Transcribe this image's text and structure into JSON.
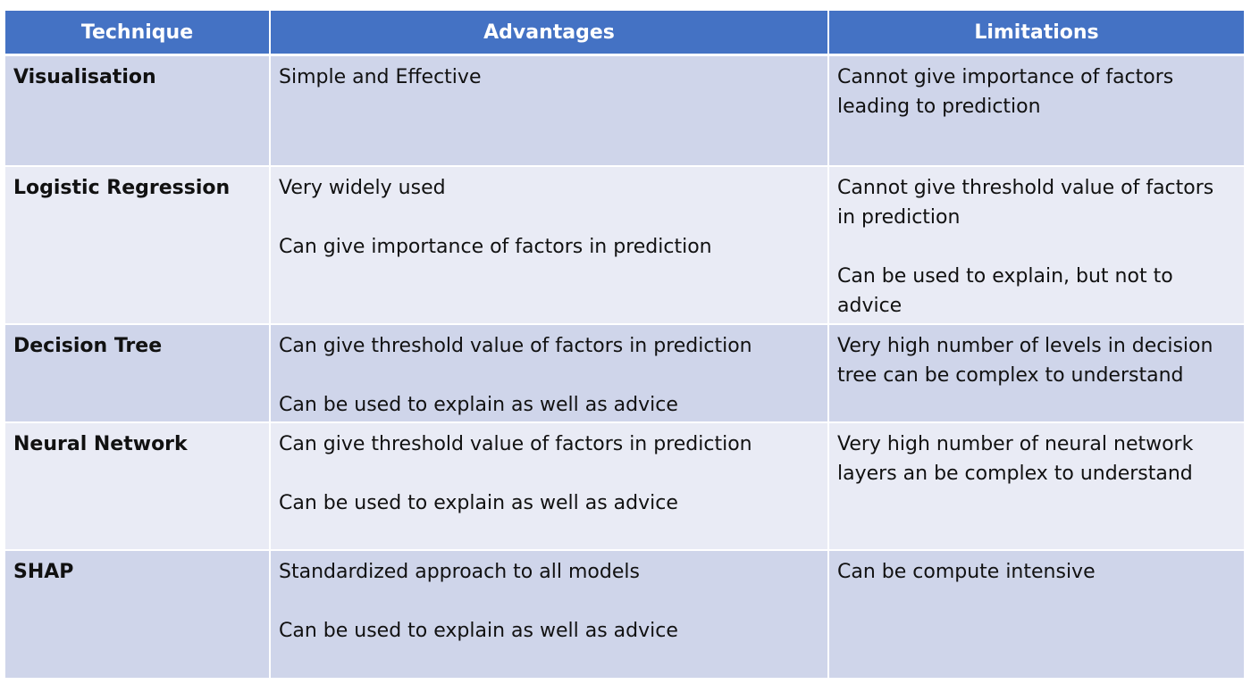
{
  "table": {
    "headers": {
      "technique": "Technique",
      "advantages": "Advantages",
      "limitations": "Limitations"
    },
    "rows": [
      {
        "technique": "Visualisation",
        "advantages": [
          "Simple and Effective"
        ],
        "limitations": [
          "Cannot give importance of factors leading to prediction"
        ]
      },
      {
        "technique": "Logistic Regression",
        "advantages": [
          "Very widely used",
          "Can give importance of factors in prediction"
        ],
        "limitations": [
          "Cannot give threshold value of factors in prediction",
          "Can be used to explain, but not to advice"
        ]
      },
      {
        "technique": "Decision Tree",
        "advantages": [
          "Can give threshold value of factors in prediction",
          "Can be used to explain as well as advice"
        ],
        "limitations": [
          "Very high number of levels in decision tree can be complex to understand"
        ]
      },
      {
        "technique": "Neural Network",
        "advantages": [
          "Can give threshold value of factors in prediction",
          "Can be used to explain as well as advice"
        ],
        "limitations": [
          "Very high number of neural network layers an be complex to understand"
        ]
      },
      {
        "technique": "SHAP",
        "advantages": [
          "Standardized approach to all models",
          "Can be used to explain as well as advice"
        ],
        "limitations": [
          "Can be compute intensive"
        ]
      }
    ],
    "colors": {
      "header_bg": "#4472c4",
      "row_odd_bg": "#cfd5ea",
      "row_even_bg": "#e9ebf5"
    }
  }
}
